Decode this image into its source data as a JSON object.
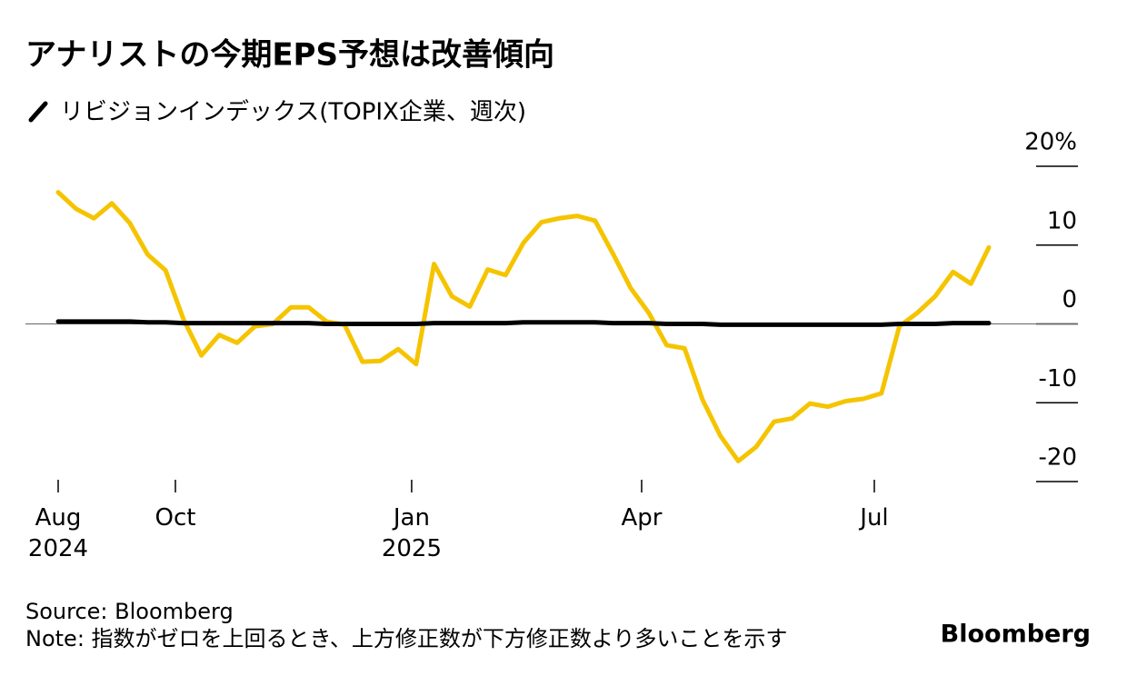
{
  "chart_data": {
    "type": "line",
    "title": "アナリストの今期EPS予想は改善傾向",
    "source": "Source: Bloomberg",
    "note": "Note: 指数がゼロを上回るとき、上方修正数が下方修正数より多いことを示す",
    "brand": "Bloomberg",
    "xlim": [
      0,
      52
    ],
    "xticks": [
      {
        "value": 0,
        "label": "Aug\n2024"
      },
      {
        "value": 6.55,
        "label": "Oct"
      },
      {
        "value": 19.75,
        "label": "Jan\n2025"
      },
      {
        "value": 32.6,
        "label": "Apr"
      },
      {
        "value": 45.6,
        "label": "Jul"
      }
    ],
    "ylim": [
      -20,
      20
    ],
    "yticks": [
      {
        "value": 20,
        "label": "20%"
      },
      10,
      0,
      -10,
      -20
    ],
    "series": [
      {
        "name": "リビジョンインデックス(TOPIX企業、週次)",
        "color": "#f5c400",
        "values": [
          16.7,
          14.6,
          13.4,
          15.3,
          12.8,
          8.8,
          6.8,
          0.6,
          -4.0,
          -1.4,
          -2.4,
          -0.3,
          0,
          2.1,
          2.1,
          0.3,
          -0.1,
          -4.8,
          -4.7,
          -3.2,
          -5.1,
          7.6,
          3.5,
          2.2,
          6.9,
          6.2,
          10.3,
          12.9,
          13.4,
          13.7,
          13.1,
          8.9,
          4.5,
          1.4,
          -2.7,
          -3.1,
          -9.6,
          -14.2,
          -17.4,
          -15.6,
          -12.4,
          -12.0,
          -10.1,
          -10.5,
          -9.8,
          -9.5,
          -8.8,
          -0.3,
          1.4,
          3.5,
          6.6,
          5.1,
          9.7
        ]
      },
      {
        "color": "#000000",
        "values": [
          0.3,
          0.3,
          0.3,
          0.3,
          0.3,
          0.2,
          0.2,
          0.1,
          0.1,
          0.1,
          0.1,
          0.1,
          0.1,
          0.1,
          0.1,
          0,
          0,
          0,
          0,
          0,
          0,
          0.1,
          0.1,
          0.1,
          0.1,
          0.1,
          0.2,
          0.2,
          0.2,
          0.2,
          0.2,
          0.1,
          0.1,
          0.1,
          0,
          0,
          0,
          -0.1,
          -0.1,
          -0.1,
          -0.1,
          -0.1,
          -0.1,
          -0.1,
          -0.1,
          -0.1,
          -0.1,
          0,
          0,
          0,
          0.1,
          0.1,
          0.1
        ]
      }
    ]
  }
}
